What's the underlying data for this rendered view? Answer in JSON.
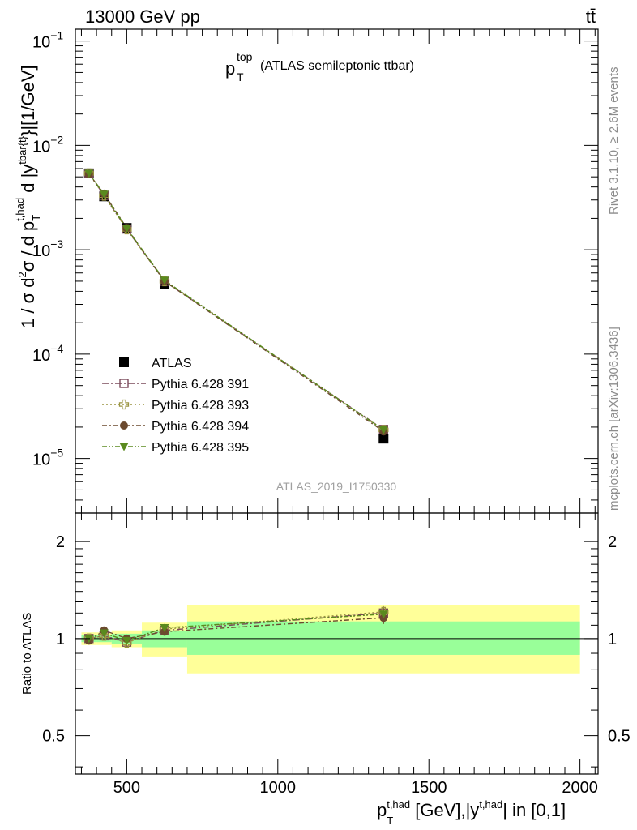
{
  "header": {
    "left": "13000 GeV pp",
    "right": "tt̄"
  },
  "plot_title": {
    "main": "p",
    "sup": "top",
    "sub": "T",
    "desc": "(ATLAS semileptonic ttbar)"
  },
  "watermark": "ATLAS_2019_I1750330",
  "side_labels": {
    "rivet": "Rivet 3.1.10, ≥ 2.6M events",
    "mcplots": "mcplots.cern.ch [arXiv:1306.3436]"
  },
  "axis_text": {
    "y_top": "1 / σ d²σ / d p_T^{t,had} d |y^{tbar{t}}|[1/GeV]",
    "y_bottom": "Ratio to ATLAS",
    "x": "p_T^{t,had} [GeV],|y^{t,had}| in [0,1]"
  },
  "colors": {
    "data": "#000000",
    "s391": "#7a4a5a",
    "s393": "#9a9440",
    "s394": "#6b4a2e",
    "s395": "#5a8a1e",
    "band_inner": "#99ff99",
    "band_outer": "#ffff99"
  },
  "chart_data": [
    {
      "type": "line",
      "panel": "main",
      "yscale": "log",
      "xlim": [
        330,
        2060
      ],
      "ylim": [
        3e-06,
        0.13
      ],
      "x_edges": [
        350,
        400,
        450,
        550,
        700,
        2000
      ],
      "x": [
        375,
        425,
        500,
        625,
        1350
      ],
      "y_ticks": [
        {
          "value": 1e-05,
          "base": "10",
          "exp": "−5"
        },
        {
          "value": 0.0001,
          "base": "10",
          "exp": "−4"
        },
        {
          "value": 0.001,
          "base": "10",
          "exp": "−3"
        },
        {
          "value": 0.01,
          "base": "10",
          "exp": "−2"
        },
        {
          "value": 0.1,
          "base": "10",
          "exp": "−1"
        }
      ],
      "x_ticks": [
        {
          "value": 500,
          "label": "500"
        },
        {
          "value": 1000,
          "label": "1000"
        },
        {
          "value": 1500,
          "label": "1500"
        },
        {
          "value": 2000,
          "label": "2000"
        }
      ],
      "legend_position": "bottom-left",
      "series": [
        {
          "name": "ATLAS",
          "key": "data",
          "marker": "square",
          "values": [
            0.0054,
            0.00325,
            0.00162,
            0.00047,
            1.55e-05
          ]
        },
        {
          "name": "Pythia 6.428 391",
          "key": "s391",
          "marker": "open-square",
          "values": [
            0.0054,
            0.00332,
            0.00158,
            0.0005,
            1.9e-05
          ]
        },
        {
          "name": "Pythia 6.428 393",
          "key": "s393",
          "marker": "open-cross",
          "values": [
            0.0054,
            0.0033,
            0.00157,
            0.0005,
            1.88e-05
          ]
        },
        {
          "name": "Pythia 6.428 394",
          "key": "s394",
          "marker": "circle",
          "values": [
            0.0053,
            0.00345,
            0.00162,
            0.0005,
            1.82e-05
          ]
        },
        {
          "name": "Pythia 6.428 395",
          "key": "s395",
          "marker": "triangle-down",
          "values": [
            0.0054,
            0.0034,
            0.0016,
            0.00051,
            1.88e-05
          ]
        }
      ]
    },
    {
      "type": "line",
      "panel": "ratio",
      "ylabel": "Ratio to ATLAS",
      "xlim": [
        330,
        2060
      ],
      "ylim": [
        0.38,
        2.45
      ],
      "yscale": "log",
      "y_ticks": [
        {
          "value": 0.5,
          "label": "0.5"
        },
        {
          "value": 1,
          "label": "1"
        },
        {
          "value": 2,
          "label": "2"
        }
      ],
      "x": [
        375,
        425,
        500,
        625,
        1350
      ],
      "bands": [
        {
          "x0": 350,
          "x1": 400,
          "inner": [
            0.975,
            1.025
          ],
          "outer": [
            0.955,
            1.045
          ]
        },
        {
          "x0": 400,
          "x1": 450,
          "inner": [
            0.975,
            1.025
          ],
          "outer": [
            0.955,
            1.045
          ]
        },
        {
          "x0": 450,
          "x1": 550,
          "inner": [
            0.965,
            1.035
          ],
          "outer": [
            0.94,
            1.06
          ]
        },
        {
          "x0": 550,
          "x1": 700,
          "inner": [
            0.94,
            1.06
          ],
          "outer": [
            0.88,
            1.12
          ]
        },
        {
          "x0": 700,
          "x1": 2000,
          "inner": [
            0.89,
            1.13
          ],
          "outer": [
            0.78,
            1.27
          ]
        }
      ],
      "series": [
        {
          "name": "Pythia 6.428 391",
          "key": "s391",
          "marker": "open-square",
          "values": [
            1.0,
            1.02,
            0.975,
            1.06,
            1.2
          ],
          "errors": [
            0.02,
            0.02,
            0.02,
            0.03,
            0.05
          ]
        },
        {
          "name": "Pythia 6.428 393",
          "key": "s393",
          "marker": "open-cross",
          "values": [
            1.0,
            1.02,
            0.97,
            1.07,
            1.21
          ],
          "errors": [
            0.02,
            0.02,
            0.02,
            0.03,
            0.05
          ]
        },
        {
          "name": "Pythia 6.428 394",
          "key": "s394",
          "marker": "circle",
          "values": [
            0.985,
            1.06,
            1.0,
            1.05,
            1.16
          ],
          "errors": [
            0.02,
            0.02,
            0.02,
            0.03,
            0.05
          ]
        },
        {
          "name": "Pythia 6.428 395",
          "key": "s395",
          "marker": "triangle-down",
          "values": [
            1.0,
            1.04,
            0.985,
            1.08,
            1.19
          ],
          "errors": [
            0.02,
            0.02,
            0.02,
            0.03,
            0.05
          ]
        }
      ]
    }
  ]
}
